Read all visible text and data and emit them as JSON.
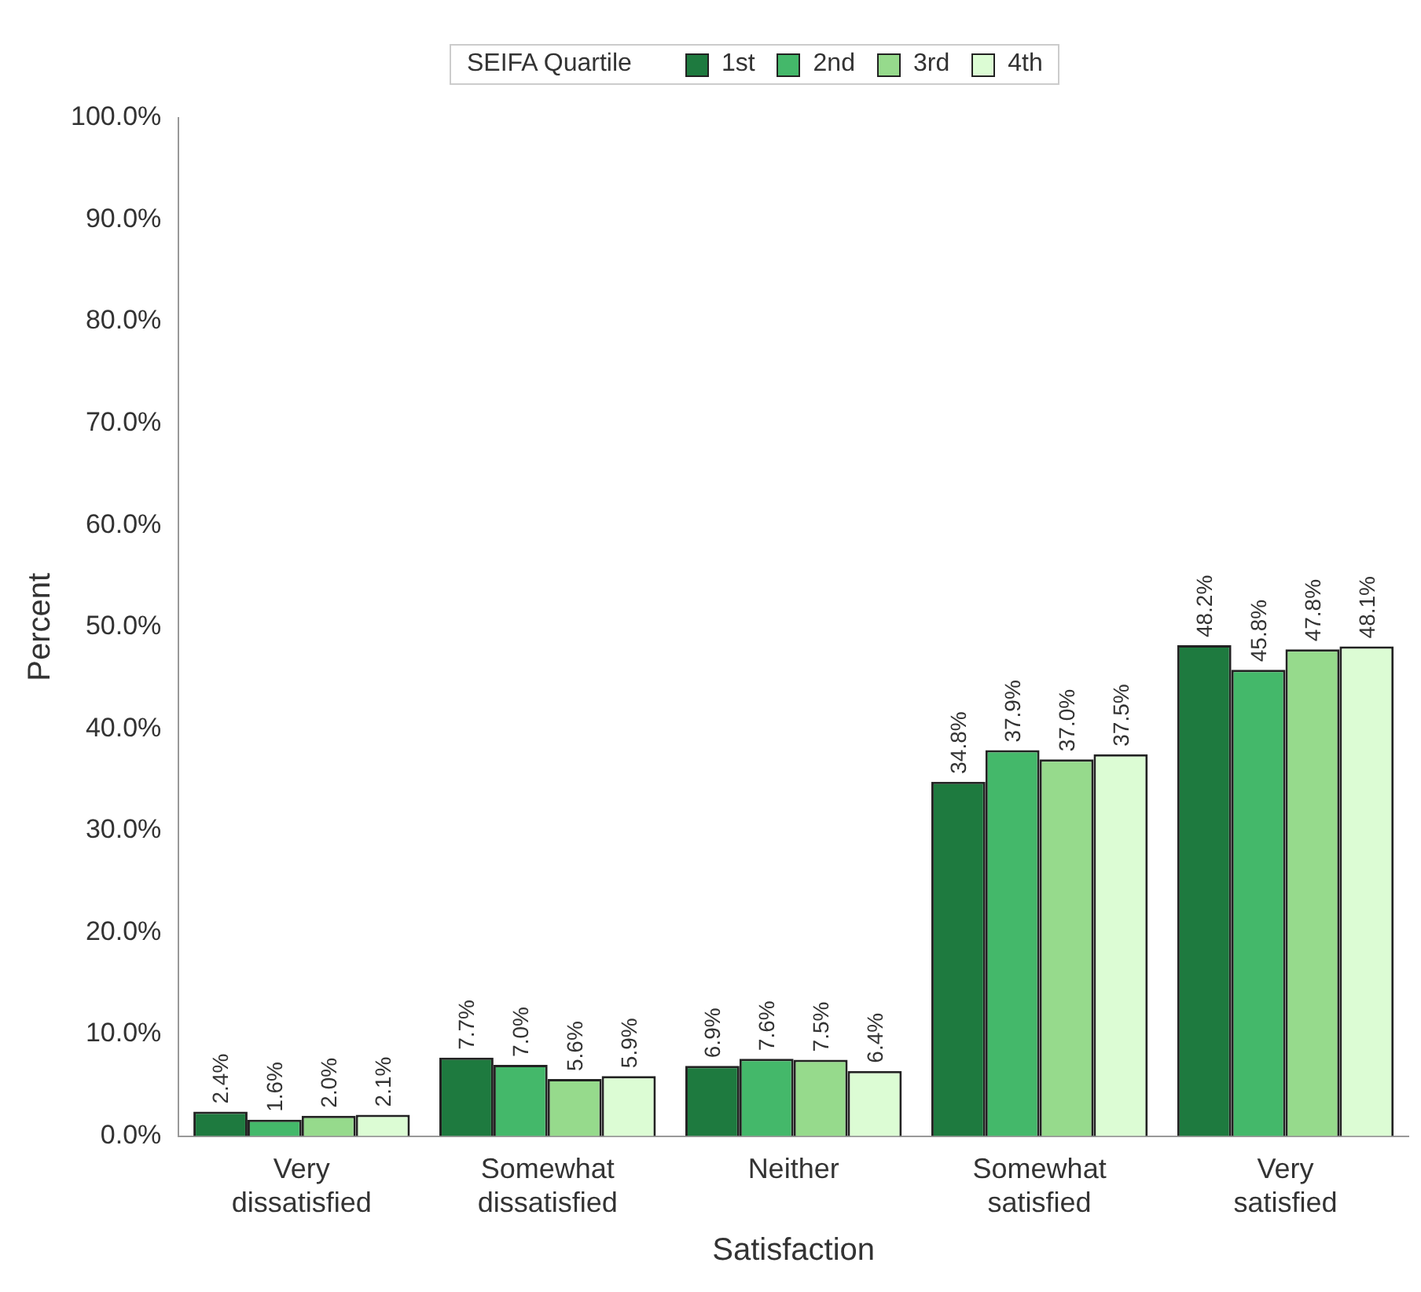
{
  "chart_data": {
    "type": "bar",
    "xlabel": "Satisfaction",
    "ylabel": "Percent",
    "legend_title": "SEIFA Quartile",
    "legend": "top",
    "grid": false,
    "categories": [
      "Very dissatisfied",
      "Somewhat dissatisfied",
      "Neither",
      "Somewhat satisfied",
      "Very satisfied"
    ],
    "series": [
      {
        "name": "1st",
        "color": "#1e7a3f",
        "values": [
          2.4,
          7.7,
          6.9,
          34.8,
          48.2
        ],
        "value_labels": [
          "2.4%",
          "7.7%",
          "6.9%",
          "34.8%",
          "48.2%"
        ]
      },
      {
        "name": "2nd",
        "color": "#44b86a",
        "values": [
          1.6,
          7.0,
          7.6,
          37.9,
          45.8
        ],
        "value_labels": [
          "1.6%",
          "7.0%",
          "7.6%",
          "37.9%",
          "45.8%"
        ]
      },
      {
        "name": "3rd",
        "color": "#96da8c",
        "values": [
          2.0,
          5.6,
          7.5,
          37.0,
          47.8
        ],
        "value_labels": [
          "2.0%",
          "5.6%",
          "7.5%",
          "37.0%",
          "47.8%"
        ]
      },
      {
        "name": "4th",
        "color": "#dcfcd4",
        "values": [
          2.1,
          5.9,
          6.4,
          37.5,
          48.1
        ],
        "value_labels": [
          "2.1%",
          "5.9%",
          "6.4%",
          "37.5%",
          "48.1%"
        ]
      }
    ],
    "ylim": [
      0,
      100
    ],
    "yticks": [
      {
        "value": 0,
        "label": "0.0%"
      },
      {
        "value": 10,
        "label": "10.0%"
      },
      {
        "value": 20,
        "label": "20.0%"
      },
      {
        "value": 30,
        "label": "30.0%"
      },
      {
        "value": 40,
        "label": "40.0%"
      },
      {
        "value": 50,
        "label": "50.0%"
      },
      {
        "value": 60,
        "label": "60.0%"
      },
      {
        "value": 70,
        "label": "70.0%"
      },
      {
        "value": 80,
        "label": "80.0%"
      },
      {
        "value": 90,
        "label": "90.0%"
      },
      {
        "value": 100,
        "label": "100.0%"
      }
    ]
  }
}
